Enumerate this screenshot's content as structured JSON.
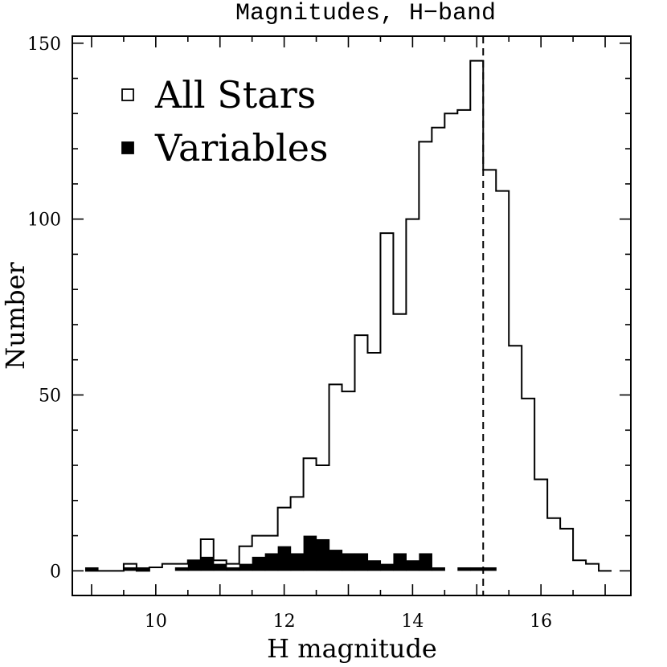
{
  "chart_data": {
    "type": "histogram",
    "title": "Magnitudes, H−band",
    "xlabel": "H magnitude",
    "ylabel": "Number",
    "xlim": [
      8.7,
      17.4
    ],
    "ylim": [
      -7,
      152
    ],
    "bin_width": 0.2,
    "x_ticks": [
      10,
      12,
      14,
      16
    ],
    "y_ticks": [
      0,
      50,
      100,
      150
    ],
    "reference_line": {
      "x": 15.1,
      "style": "dashed"
    },
    "legend": {
      "placement": "top-left",
      "entries": [
        "All Stars",
        "Variables"
      ]
    },
    "series": [
      {
        "name": "All Stars",
        "style": "open-step",
        "bin_starts": [
          8.9,
          9.1,
          9.3,
          9.5,
          9.7,
          9.9,
          10.1,
          10.3,
          10.5,
          10.7,
          10.9,
          11.1,
          11.3,
          11.5,
          11.7,
          11.9,
          12.1,
          12.3,
          12.5,
          12.7,
          12.9,
          13.1,
          13.3,
          13.5,
          13.7,
          13.9,
          14.1,
          14.3,
          14.5,
          14.7,
          14.9,
          15.1,
          15.3,
          15.5,
          15.7,
          15.9,
          16.1,
          16.3,
          16.5,
          16.7,
          16.9
        ],
        "counts": [
          0,
          0,
          0,
          2,
          0,
          1,
          2,
          2,
          3,
          9,
          3,
          2,
          7,
          10,
          10,
          18,
          21,
          32,
          30,
          53,
          51,
          67,
          62,
          96,
          73,
          100,
          122,
          126,
          130,
          131,
          145,
          114,
          108,
          64,
          49,
          26,
          15,
          12,
          3,
          2,
          0
        ]
      },
      {
        "name": "Variables",
        "style": "filled",
        "bin_starts": [
          8.9,
          9.1,
          9.3,
          9.5,
          9.7,
          9.9,
          10.1,
          10.3,
          10.5,
          10.7,
          10.9,
          11.1,
          11.3,
          11.5,
          11.7,
          11.9,
          12.1,
          12.3,
          12.5,
          12.7,
          12.9,
          13.1,
          13.3,
          13.5,
          13.7,
          13.9,
          14.1,
          14.3,
          14.5,
          14.7,
          14.9,
          15.1,
          15.3,
          15.5,
          15.7,
          15.9,
          16.1,
          16.3,
          16.5,
          16.7,
          16.9
        ],
        "counts": [
          1,
          0,
          0,
          1,
          1,
          0,
          0,
          1,
          3,
          4,
          2,
          1,
          2,
          4,
          5,
          7,
          5,
          10,
          9,
          6,
          5,
          5,
          3,
          2,
          5,
          3,
          5,
          1,
          0,
          1,
          1,
          1,
          0,
          0,
          0,
          0,
          0,
          0,
          0,
          0,
          0
        ]
      }
    ]
  }
}
